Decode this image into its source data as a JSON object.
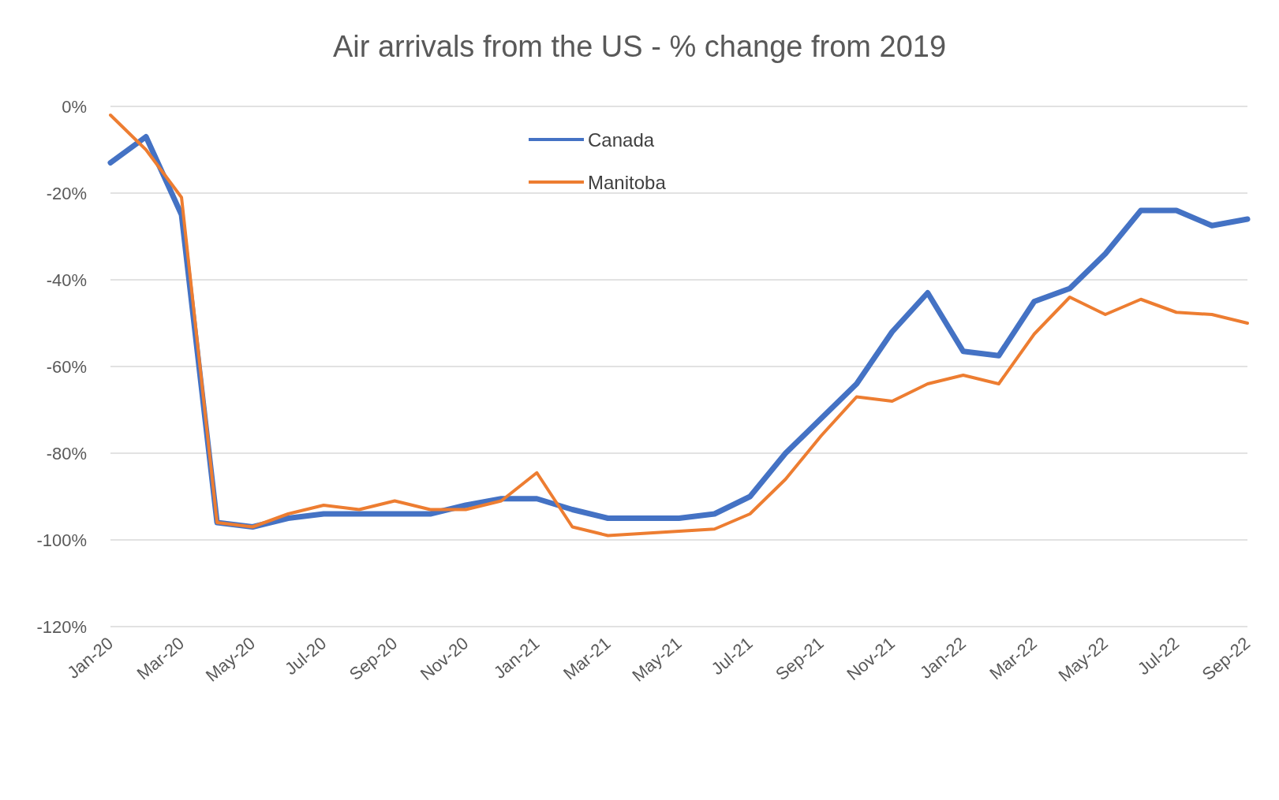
{
  "chart_data": {
    "type": "line",
    "title": "Air arrivals from the US - % change from 2019",
    "categories": [
      "Jan-20",
      null,
      "Mar-20",
      null,
      "May-20",
      null,
      "Jul-20",
      null,
      "Sep-20",
      null,
      "Nov-20",
      null,
      "Jan-21",
      null,
      "Mar-21",
      null,
      "May-21",
      null,
      "Jul-21",
      null,
      "Sep-21",
      null,
      "Nov-21",
      null,
      "Jan-22",
      null,
      "Mar-22",
      null,
      "May-22",
      null,
      "Jul-22",
      null,
      "Sep-22"
    ],
    "series": [
      {
        "name": "Canada",
        "color": "#4472c4",
        "values": [
          -13,
          -7,
          -25,
          -96,
          -97,
          -95,
          -94,
          -94,
          -94,
          -94,
          -92,
          -90.5,
          -90.5,
          -93,
          -95,
          -95,
          -95,
          -94,
          -90,
          -80,
          -72,
          -64,
          -52,
          -43,
          -56.5,
          -57.5,
          -45,
          -42,
          -34,
          -24,
          -24,
          -27.5,
          -26
        ]
      },
      {
        "name": "Manitoba",
        "color": "#ed7d31",
        "values": [
          -2,
          -10,
          -21,
          -96,
          -97,
          -94,
          -92,
          -93,
          -91,
          -93,
          -93,
          -91,
          -84.5,
          -97,
          -99,
          -98.5,
          -98,
          -97.5,
          -94,
          -86,
          -76,
          -67,
          -68,
          -64,
          -62,
          -64,
          -52.5,
          -44,
          -48,
          -44.5,
          -47.5,
          -48,
          -50
        ]
      }
    ],
    "ylim": [
      -120,
      0
    ],
    "yticks": [
      {
        "value": -120,
        "label": "-120%"
      },
      {
        "value": -100,
        "label": "-100%"
      },
      {
        "value": -80,
        "label": "-80%"
      },
      {
        "value": -60,
        "label": "-60%"
      },
      {
        "value": -40,
        "label": "-40%"
      },
      {
        "value": -20,
        "label": "-20%"
      },
      {
        "value": 0,
        "label": "0%"
      }
    ],
    "grid": "y",
    "legend": "top"
  }
}
